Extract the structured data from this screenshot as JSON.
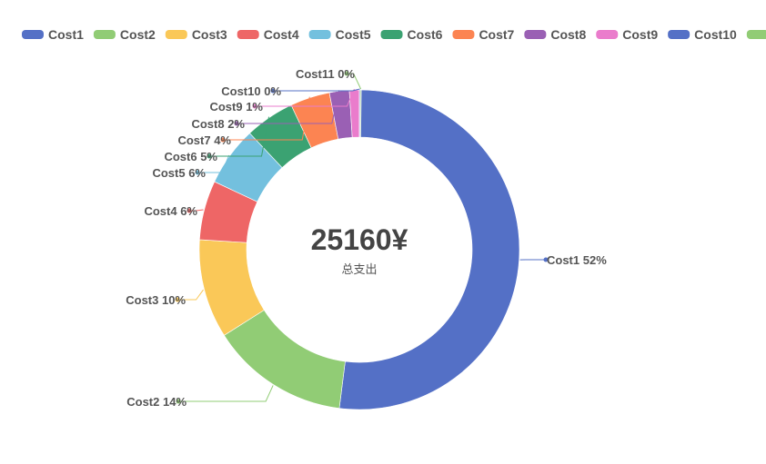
{
  "chart_data": {
    "type": "pie",
    "style": "donut",
    "center_value": "25160¥",
    "center_label": "总支出",
    "legend_position": "top",
    "slices": [
      {
        "name": "Cost1",
        "percent": 52,
        "color": "#5470c6"
      },
      {
        "name": "Cost2",
        "percent": 14,
        "color": "#91cc75"
      },
      {
        "name": "Cost3",
        "percent": 10,
        "color": "#fac858"
      },
      {
        "name": "Cost4",
        "percent": 6,
        "color": "#ee6666"
      },
      {
        "name": "Cost5",
        "percent": 6,
        "color": "#73c0de"
      },
      {
        "name": "Cost6",
        "percent": 5,
        "color": "#3ba272"
      },
      {
        "name": "Cost7",
        "percent": 4,
        "color": "#fc8452"
      },
      {
        "name": "Cost8",
        "percent": 2,
        "color": "#9a60b4"
      },
      {
        "name": "Cost9",
        "percent": 1,
        "color": "#ea7ccc"
      },
      {
        "name": "Cost10",
        "percent": 0,
        "color": "#5470c6"
      },
      {
        "name": "Cost11",
        "percent": 0,
        "color": "#91cc75"
      }
    ]
  }
}
